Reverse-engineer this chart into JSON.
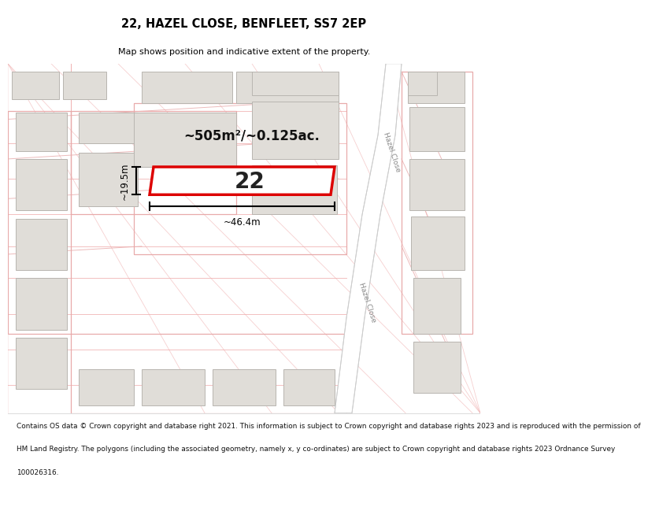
{
  "title": "22, HAZEL CLOSE, BENFLEET, SS7 2EP",
  "subtitle": "Map shows position and indicative extent of the property.",
  "footer_lines": [
    "Contains OS data © Crown copyright and database right 2021. This information is subject to Crown copyright and database rights 2023 and is reproduced with the permission of",
    "HM Land Registry. The polygons (including the associated geometry, namely x, y co-ordinates) are subject to Crown copyright and database rights 2023 Ordnance Survey",
    "100026316."
  ],
  "area_text": "~505m²/~0.125ac.",
  "plot_number": "22",
  "dim_width": "~46.4m",
  "dim_height": "~19.5m",
  "map_bg": "#ffffff",
  "plot_edge_color": "#dd0000",
  "road_line_color": "#f0b0b0",
  "road_fill_color": "#ffffff",
  "building_fill": "#e0ddd8",
  "building_edge": "#b8b5b0",
  "parcel_edge": "#e8aaaa",
  "hazel_close_label": "Hazel Close"
}
